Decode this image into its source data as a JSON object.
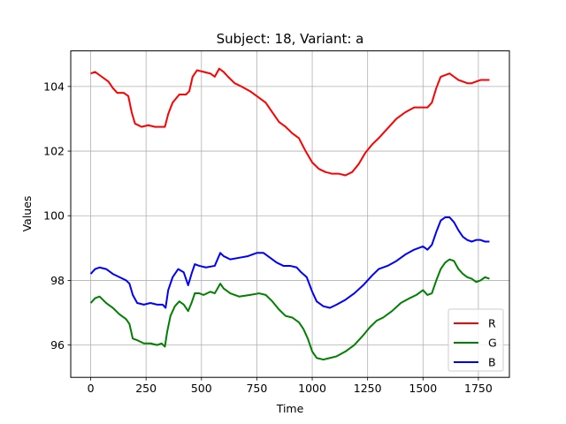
{
  "chart_data": {
    "type": "line",
    "title": "Subject: 18, Variant: a",
    "xlabel": "Time",
    "ylabel": "Values",
    "xlim": [
      -90,
      1890
    ],
    "ylim": [
      95.0,
      105.1
    ],
    "xticks": [
      0,
      250,
      500,
      750,
      1000,
      1250,
      1500,
      1750
    ],
    "yticks": [
      96,
      98,
      100,
      102,
      104
    ],
    "grid": true,
    "legend_position": "lower-right",
    "series": [
      {
        "name": "R",
        "color": "#ff0000",
        "points": [
          [
            0,
            104.4
          ],
          [
            20,
            104.45
          ],
          [
            50,
            104.3
          ],
          [
            80,
            104.15
          ],
          [
            100,
            103.95
          ],
          [
            120,
            103.8
          ],
          [
            150,
            103.8
          ],
          [
            170,
            103.7
          ],
          [
            185,
            103.2
          ],
          [
            200,
            102.85
          ],
          [
            230,
            102.75
          ],
          [
            260,
            102.8
          ],
          [
            290,
            102.75
          ],
          [
            320,
            102.75
          ],
          [
            335,
            102.75
          ],
          [
            350,
            103.15
          ],
          [
            370,
            103.5
          ],
          [
            400,
            103.75
          ],
          [
            430,
            103.75
          ],
          [
            445,
            103.85
          ],
          [
            460,
            104.3
          ],
          [
            480,
            104.5
          ],
          [
            510,
            104.45
          ],
          [
            540,
            104.4
          ],
          [
            560,
            104.3
          ],
          [
            580,
            104.55
          ],
          [
            600,
            104.45
          ],
          [
            620,
            104.3
          ],
          [
            650,
            104.1
          ],
          [
            680,
            104.0
          ],
          [
            720,
            103.85
          ],
          [
            760,
            103.65
          ],
          [
            790,
            103.5
          ],
          [
            820,
            103.2
          ],
          [
            850,
            102.9
          ],
          [
            880,
            102.75
          ],
          [
            910,
            102.55
          ],
          [
            940,
            102.4
          ],
          [
            970,
            102.0
          ],
          [
            1000,
            101.65
          ],
          [
            1030,
            101.45
          ],
          [
            1060,
            101.35
          ],
          [
            1090,
            101.3
          ],
          [
            1120,
            101.3
          ],
          [
            1150,
            101.25
          ],
          [
            1180,
            101.35
          ],
          [
            1210,
            101.6
          ],
          [
            1240,
            101.95
          ],
          [
            1270,
            102.2
          ],
          [
            1300,
            102.4
          ],
          [
            1340,
            102.7
          ],
          [
            1380,
            103.0
          ],
          [
            1420,
            103.2
          ],
          [
            1460,
            103.35
          ],
          [
            1490,
            103.35
          ],
          [
            1520,
            103.35
          ],
          [
            1540,
            103.5
          ],
          [
            1560,
            103.95
          ],
          [
            1580,
            104.3
          ],
          [
            1600,
            104.35
          ],
          [
            1620,
            104.4
          ],
          [
            1640,
            104.3
          ],
          [
            1660,
            104.2
          ],
          [
            1680,
            104.15
          ],
          [
            1700,
            104.1
          ],
          [
            1720,
            104.1
          ],
          [
            1740,
            104.15
          ],
          [
            1760,
            104.2
          ],
          [
            1780,
            104.2
          ],
          [
            1800,
            104.2
          ]
        ]
      },
      {
        "name": "G",
        "color": "#008000",
        "points": [
          [
            0,
            97.3
          ],
          [
            20,
            97.45
          ],
          [
            40,
            97.5
          ],
          [
            70,
            97.3
          ],
          [
            100,
            97.15
          ],
          [
            130,
            96.95
          ],
          [
            160,
            96.8
          ],
          [
            175,
            96.65
          ],
          [
            190,
            96.2
          ],
          [
            210,
            96.15
          ],
          [
            240,
            96.05
          ],
          [
            270,
            96.05
          ],
          [
            300,
            96.0
          ],
          [
            320,
            96.05
          ],
          [
            335,
            95.95
          ],
          [
            345,
            96.4
          ],
          [
            360,
            96.9
          ],
          [
            380,
            97.2
          ],
          [
            400,
            97.35
          ],
          [
            420,
            97.25
          ],
          [
            440,
            97.05
          ],
          [
            455,
            97.3
          ],
          [
            470,
            97.6
          ],
          [
            490,
            97.6
          ],
          [
            510,
            97.55
          ],
          [
            540,
            97.65
          ],
          [
            560,
            97.6
          ],
          [
            585,
            97.9
          ],
          [
            600,
            97.75
          ],
          [
            630,
            97.6
          ],
          [
            670,
            97.5
          ],
          [
            720,
            97.55
          ],
          [
            760,
            97.6
          ],
          [
            790,
            97.55
          ],
          [
            820,
            97.35
          ],
          [
            850,
            97.1
          ],
          [
            880,
            96.9
          ],
          [
            910,
            96.85
          ],
          [
            940,
            96.7
          ],
          [
            960,
            96.5
          ],
          [
            980,
            96.2
          ],
          [
            1000,
            95.8
          ],
          [
            1020,
            95.6
          ],
          [
            1050,
            95.55
          ],
          [
            1080,
            95.6
          ],
          [
            1110,
            95.65
          ],
          [
            1150,
            95.8
          ],
          [
            1190,
            96.0
          ],
          [
            1230,
            96.3
          ],
          [
            1260,
            96.55
          ],
          [
            1290,
            96.75
          ],
          [
            1320,
            96.85
          ],
          [
            1360,
            97.05
          ],
          [
            1400,
            97.3
          ],
          [
            1440,
            97.45
          ],
          [
            1470,
            97.55
          ],
          [
            1500,
            97.7
          ],
          [
            1520,
            97.55
          ],
          [
            1540,
            97.6
          ],
          [
            1560,
            98.0
          ],
          [
            1580,
            98.35
          ],
          [
            1600,
            98.55
          ],
          [
            1620,
            98.65
          ],
          [
            1640,
            98.6
          ],
          [
            1660,
            98.35
          ],
          [
            1680,
            98.2
          ],
          [
            1700,
            98.1
          ],
          [
            1720,
            98.05
          ],
          [
            1740,
            97.95
          ],
          [
            1760,
            98.0
          ],
          [
            1780,
            98.1
          ],
          [
            1800,
            98.05
          ]
        ]
      },
      {
        "name": "B",
        "color": "#0000ff",
        "points": [
          [
            0,
            98.2
          ],
          [
            20,
            98.35
          ],
          [
            40,
            98.4
          ],
          [
            70,
            98.35
          ],
          [
            100,
            98.2
          ],
          [
            130,
            98.1
          ],
          [
            160,
            98.0
          ],
          [
            175,
            97.9
          ],
          [
            190,
            97.55
          ],
          [
            210,
            97.3
          ],
          [
            240,
            97.25
          ],
          [
            270,
            97.3
          ],
          [
            300,
            97.25
          ],
          [
            325,
            97.25
          ],
          [
            338,
            97.15
          ],
          [
            350,
            97.7
          ],
          [
            370,
            98.1
          ],
          [
            395,
            98.35
          ],
          [
            420,
            98.25
          ],
          [
            440,
            97.85
          ],
          [
            455,
            98.2
          ],
          [
            470,
            98.5
          ],
          [
            490,
            98.45
          ],
          [
            520,
            98.4
          ],
          [
            560,
            98.45
          ],
          [
            585,
            98.85
          ],
          [
            600,
            98.75
          ],
          [
            630,
            98.65
          ],
          [
            670,
            98.7
          ],
          [
            710,
            98.75
          ],
          [
            750,
            98.85
          ],
          [
            780,
            98.85
          ],
          [
            810,
            98.7
          ],
          [
            840,
            98.55
          ],
          [
            870,
            98.45
          ],
          [
            900,
            98.45
          ],
          [
            930,
            98.4
          ],
          [
            950,
            98.25
          ],
          [
            975,
            98.1
          ],
          [
            1000,
            97.65
          ],
          [
            1020,
            97.35
          ],
          [
            1050,
            97.2
          ],
          [
            1080,
            97.15
          ],
          [
            1110,
            97.25
          ],
          [
            1150,
            97.4
          ],
          [
            1190,
            97.6
          ],
          [
            1230,
            97.85
          ],
          [
            1270,
            98.15
          ],
          [
            1300,
            98.35
          ],
          [
            1340,
            98.45
          ],
          [
            1380,
            98.6
          ],
          [
            1420,
            98.8
          ],
          [
            1460,
            98.95
          ],
          [
            1500,
            99.05
          ],
          [
            1520,
            98.95
          ],
          [
            1540,
            99.1
          ],
          [
            1560,
            99.5
          ],
          [
            1580,
            99.85
          ],
          [
            1600,
            99.95
          ],
          [
            1620,
            99.95
          ],
          [
            1640,
            99.8
          ],
          [
            1660,
            99.55
          ],
          [
            1680,
            99.35
          ],
          [
            1700,
            99.25
          ],
          [
            1720,
            99.2
          ],
          [
            1740,
            99.25
          ],
          [
            1760,
            99.25
          ],
          [
            1780,
            99.2
          ],
          [
            1800,
            99.2
          ]
        ]
      }
    ]
  }
}
